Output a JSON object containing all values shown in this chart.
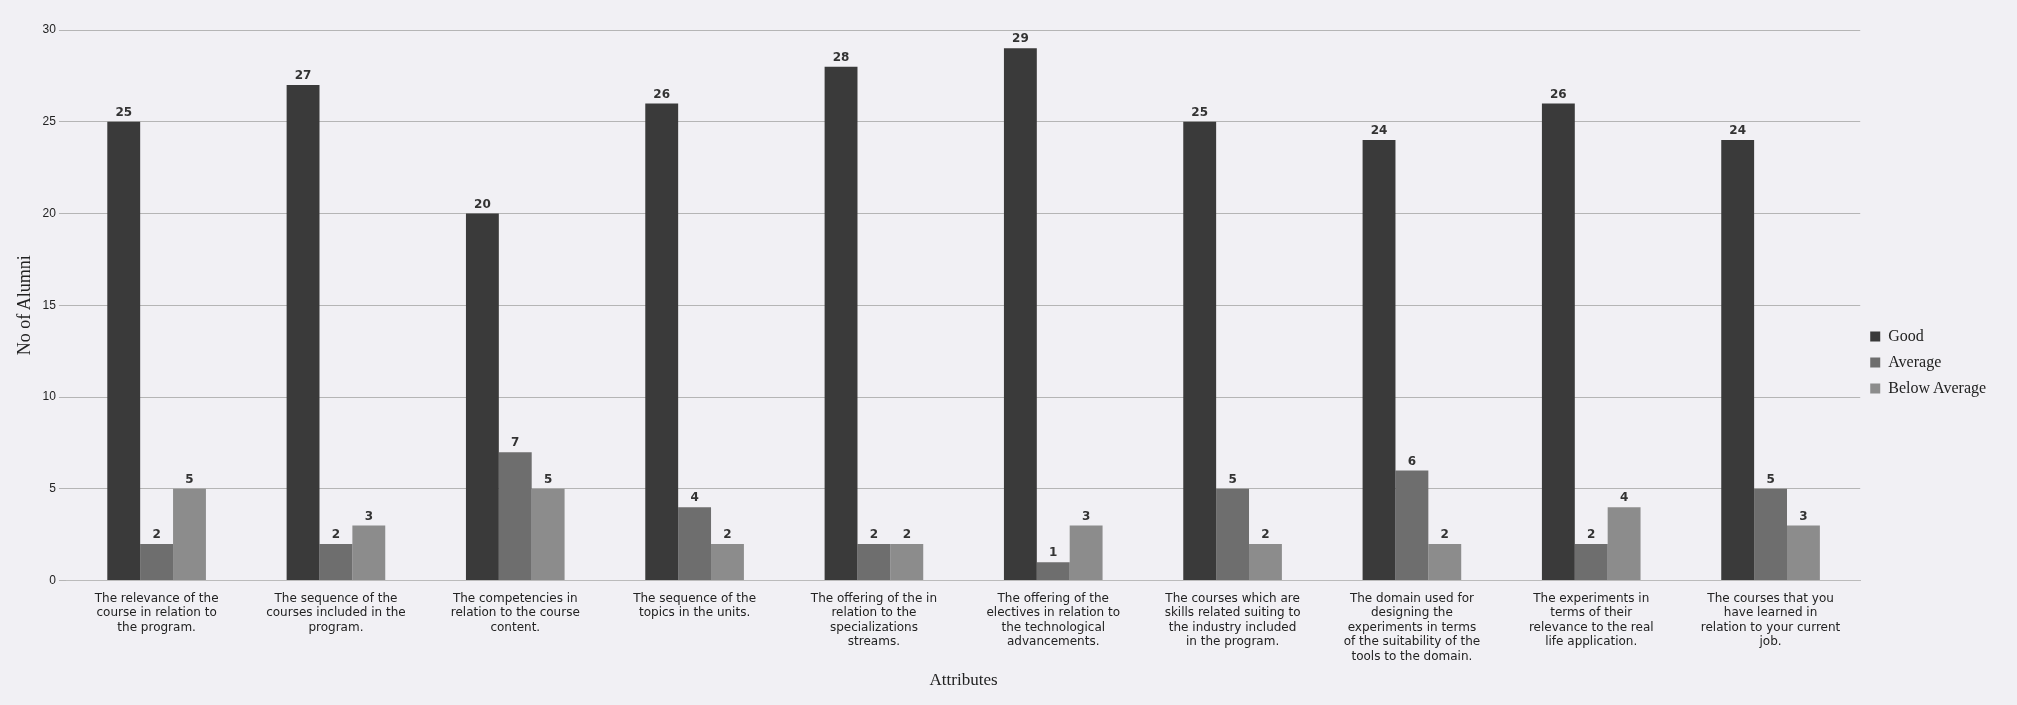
{
  "chart_data": {
    "type": "bar",
    "xlabel": "Attributes",
    "ylabel": "No of Alumni",
    "categories": [
      "The relevance of the course in relation to the program.",
      "The sequence of the courses included in the program.",
      "The competencies in relation to the course content.",
      "The sequence of the topics in the units.",
      "The offering of the in relation to the specializations streams.",
      "The offering of the electives in relation to the technological advancements.",
      "The courses which are skills related suiting to the industry included in the program.",
      "The domain used for designing the experiments in terms of the suitability of the tools to the domain.",
      "The experiments in terms of their relevance to the real life application.",
      "The courses that you have learned in relation to your current job."
    ],
    "series": [
      {
        "name": "Good",
        "color": "#3a3a3a",
        "values": [
          25,
          27,
          20,
          26,
          28,
          29,
          25,
          24,
          26,
          24
        ]
      },
      {
        "name": "Average",
        "color": "#6e6e6e",
        "values": [
          2,
          2,
          7,
          4,
          2,
          1,
          5,
          6,
          2,
          5
        ]
      },
      {
        "name": "Below Average",
        "color": "#8c8c8c",
        "values": [
          5,
          3,
          5,
          2,
          2,
          3,
          2,
          2,
          4,
          3
        ]
      }
    ],
    "ylim": [
      0,
      30
    ],
    "yticks": [
      0,
      5,
      10,
      15,
      20,
      25,
      30
    ],
    "grid": "y",
    "legend": "right",
    "data_labels": true
  }
}
